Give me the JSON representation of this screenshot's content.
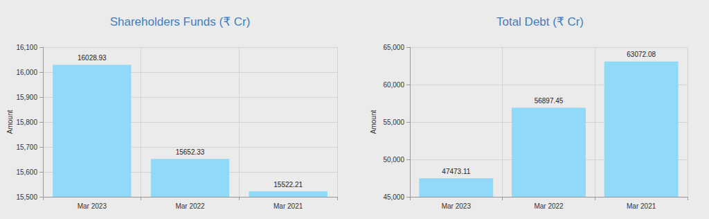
{
  "chart_data": [
    {
      "type": "bar",
      "title": "Shareholders Funds (₹ Cr)",
      "y_label": "Amount",
      "categories": [
        "Mar 2023",
        "Mar 2022",
        "Mar 2021"
      ],
      "values": [
        16028.93,
        15652.33,
        15522.21
      ],
      "color": "#91d9f8",
      "ylim": [
        15500,
        16100
      ],
      "yticks": [
        {
          "value": 15500,
          "label": "15,500"
        },
        {
          "value": 15600,
          "label": "15,600"
        },
        {
          "value": 15700,
          "label": "15,700"
        },
        {
          "value": 15800,
          "label": "15,800"
        },
        {
          "value": 15900,
          "label": "15,900"
        },
        {
          "value": 16000,
          "label": "16,000"
        },
        {
          "value": 16100,
          "label": "16,100"
        }
      ],
      "grid": true,
      "data_labels": true
    },
    {
      "type": "bar",
      "title": "Total Debt (₹ Cr)",
      "y_label": "Amount",
      "categories": [
        "Mar 2023",
        "Mar 2022",
        "Mar 2021"
      ],
      "values": [
        47473.11,
        56897.45,
        63072.08
      ],
      "color": "#91d9f8",
      "ylim": [
        45000,
        65000
      ],
      "yticks": [
        {
          "value": 45000,
          "label": "45,000"
        },
        {
          "value": 50000,
          "label": "50,000"
        },
        {
          "value": 55000,
          "label": "55,000"
        },
        {
          "value": 60000,
          "label": "60,000"
        },
        {
          "value": 65000,
          "label": "65,000"
        }
      ],
      "grid": true,
      "data_labels": true
    }
  ]
}
